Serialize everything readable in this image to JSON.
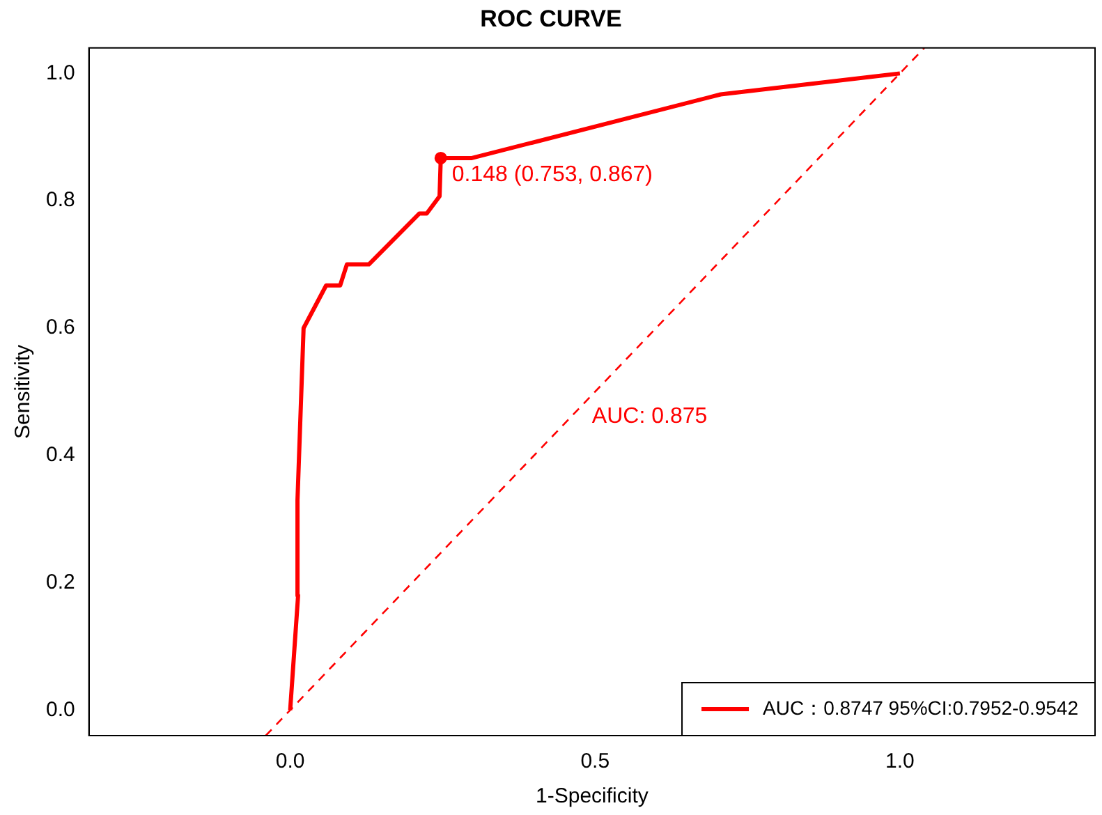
{
  "chart_data": {
    "type": "line",
    "title": "ROC CURVE",
    "xlabel": "1-Specificity",
    "ylabel": "Sensitivity",
    "xlim": [
      -0.33,
      1.32
    ],
    "ylim": [
      -0.04,
      1.04
    ],
    "xticks": [
      {
        "value": 0,
        "label": "0.0"
      },
      0.5,
      {
        "value": 1,
        "label": "1.0"
      }
    ],
    "yticks": [
      {
        "value": 0,
        "label": "0.0"
      },
      0.2,
      0.4,
      0.6,
      0.8,
      {
        "value": 1,
        "label": "1.0"
      }
    ],
    "grid": false,
    "legend": "bottom right",
    "marker": "none",
    "line_style": "solid",
    "series": [
      {
        "name": "AUC：0.8747 95%CI:0.7952-0.9542",
        "color": "#ff0000",
        "x": [
          0,
          0.013,
          0.012,
          0.022,
          0.059,
          0.082,
          0.093,
          0.129,
          0.212,
          0.224,
          0.245,
          0.247,
          0.298,
          0.706,
          1.0
        ],
        "values": [
          0,
          0.18,
          0.33,
          0.6,
          0.667,
          0.667,
          0.7,
          0.7,
          0.78,
          0.78,
          0.807,
          0.867,
          0.867,
          0.967,
          1.0
        ]
      },
      {
        "type": "line",
        "line_style": "dashed",
        "color": "#ff0000",
        "x": [
          -0.04,
          1.04
        ],
        "values": [
          -0.04,
          1.04
        ]
      },
      {
        "type": "scatter",
        "marker": "circle",
        "color": "#ff0000",
        "x": [
          0.247
        ],
        "values": [
          0.867
        ]
      }
    ],
    "annotations": [
      {
        "text": "0.148 (0.753, 0.867)",
        "x": 0.247,
        "y": 0.867
      },
      "AUC: 0.875"
    ]
  }
}
